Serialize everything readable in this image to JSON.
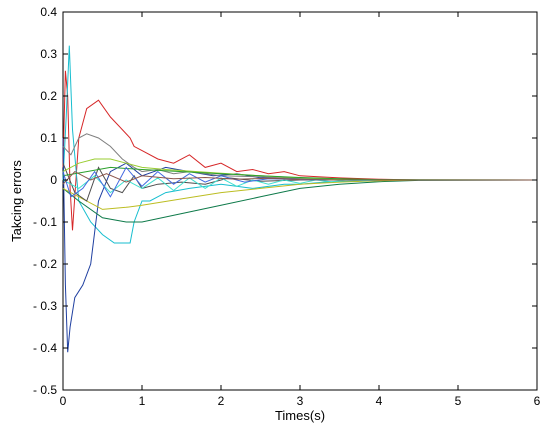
{
  "chart_data": {
    "type": "line",
    "title": "",
    "xlabel": "Times(s)",
    "ylabel": "Takcing errors",
    "xlim": [
      0,
      6
    ],
    "ylim": [
      -0.5,
      0.4
    ],
    "grid": false,
    "legend": "none",
    "xticks": [
      0,
      1,
      2,
      3,
      4,
      5,
      6
    ],
    "xtick_labels": [
      "0",
      "1",
      "2",
      "3",
      "4",
      "5",
      "6"
    ],
    "yticks": [
      0.4,
      0.3,
      0.2,
      0.1,
      0,
      -0.1,
      -0.2,
      -0.3,
      -0.4,
      -0.5
    ],
    "ytick_labels": [
      "0.4",
      "0.3",
      "0.2",
      "0.1",
      "0",
      "- 0.1",
      "- 0.2",
      "- 0.3",
      "- 0.4",
      "- 0.5"
    ],
    "series": [
      {
        "color": "#d62728",
        "x": [
          0,
          0.03,
          0.06,
          0.09,
          0.12,
          0.2,
          0.3,
          0.45,
          0.6,
          0.75,
          0.85,
          0.9,
          1.0,
          1.2,
          1.4,
          1.6,
          1.8,
          2.0,
          2.2,
          2.4,
          2.6,
          2.8,
          3.0,
          3.2,
          3.5,
          4.0,
          4.5,
          6.0
        ],
        "y": [
          0.03,
          0.26,
          0.2,
          -0.02,
          -0.12,
          0.1,
          0.17,
          0.19,
          0.15,
          0.12,
          0.1,
          0.08,
          0.07,
          0.05,
          0.04,
          0.06,
          0.03,
          0.04,
          0.02,
          0.025,
          0.015,
          0.02,
          0.01,
          0.008,
          0.005,
          0.002,
          0.0,
          0.0
        ]
      },
      {
        "color": "#17becf",
        "x": [
          0,
          0.04,
          0.08,
          0.12,
          0.2,
          0.35,
          0.5,
          0.65,
          0.85,
          0.9,
          1.0,
          1.1,
          1.3,
          1.6,
          2.0,
          2.4,
          2.8,
          3.0,
          3.3,
          3.6,
          4.0,
          4.5,
          6.0
        ],
        "y": [
          0.0,
          0.15,
          0.32,
          0.12,
          -0.05,
          -0.1,
          -0.13,
          -0.15,
          -0.15,
          -0.1,
          -0.05,
          -0.05,
          -0.03,
          -0.02,
          -0.01,
          -0.02,
          -0.01,
          -0.01,
          -0.005,
          -0.003,
          -0.001,
          0.0,
          0.0
        ]
      },
      {
        "color": "#1f3fa0",
        "x": [
          0,
          0.03,
          0.06,
          0.09,
          0.15,
          0.25,
          0.35,
          0.45,
          0.6,
          0.8,
          1.0,
          1.3,
          1.6,
          1.9,
          2.2,
          2.5,
          3.0,
          3.5,
          4.0,
          6.0
        ],
        "y": [
          0.1,
          -0.25,
          -0.41,
          -0.35,
          -0.28,
          -0.25,
          -0.2,
          -0.05,
          0.02,
          0.04,
          0.01,
          0.03,
          0.02,
          0.01,
          0.015,
          0.005,
          0.003,
          0.001,
          0.0,
          0.0
        ]
      },
      {
        "color": "#0e7a4a",
        "x": [
          0,
          0.2,
          0.5,
          0.8,
          1.0,
          1.5,
          2.0,
          2.5,
          3.0,
          3.5,
          4.0,
          4.5,
          6.0
        ],
        "y": [
          -0.02,
          -0.05,
          -0.09,
          -0.1,
          -0.1,
          -0.08,
          -0.06,
          -0.04,
          -0.02,
          -0.01,
          -0.004,
          -0.001,
          0.0
        ]
      },
      {
        "color": "#bcbd22",
        "x": [
          0,
          0.2,
          0.5,
          0.8,
          1.0,
          1.5,
          2.0,
          2.5,
          3.0,
          3.5,
          4.0,
          4.5,
          6.0
        ],
        "y": [
          -0.02,
          -0.04,
          -0.07,
          -0.065,
          -0.06,
          -0.045,
          -0.03,
          -0.02,
          -0.01,
          -0.005,
          -0.002,
          0.0,
          0.0
        ]
      },
      {
        "color": "#7f7f7f",
        "x": [
          0,
          0.1,
          0.2,
          0.3,
          0.45,
          0.6,
          0.75,
          0.9,
          1.0,
          1.2,
          1.4,
          1.6,
          2.0,
          2.4,
          2.8,
          3.2,
          3.6,
          4.0,
          6.0
        ],
        "y": [
          0.08,
          0.06,
          0.1,
          0.11,
          0.1,
          0.08,
          0.05,
          0.03,
          0.02,
          0.025,
          0.015,
          0.02,
          0.01,
          0.008,
          0.005,
          0.003,
          0.001,
          0.0,
          0.0
        ]
      },
      {
        "color": "#4d4d4d",
        "x": [
          0,
          0.15,
          0.3,
          0.45,
          0.6,
          0.75,
          0.9,
          1.0,
          1.2,
          1.5,
          1.8,
          2.1,
          2.5,
          3.0,
          3.5,
          4.0,
          6.0
        ],
        "y": [
          0.04,
          -0.03,
          -0.05,
          0.03,
          -0.02,
          -0.03,
          0.01,
          -0.02,
          -0.01,
          -0.005,
          -0.01,
          0.005,
          -0.003,
          0.0,
          0.0,
          0.0,
          0.0
        ]
      },
      {
        "color": "#9acd32",
        "x": [
          0,
          0.2,
          0.4,
          0.6,
          0.8,
          1.0,
          1.3,
          1.7,
          2.1,
          2.5,
          3.0,
          3.5,
          4.0,
          6.0
        ],
        "y": [
          0.02,
          0.04,
          0.05,
          0.05,
          0.04,
          0.03,
          0.025,
          0.02,
          0.015,
          0.01,
          0.005,
          0.002,
          0.0,
          0.0
        ]
      },
      {
        "color": "#2ca02c",
        "x": [
          0,
          0.3,
          0.6,
          1.0,
          1.5,
          2.0,
          2.5,
          3.0,
          3.5,
          4.0,
          6.0
        ],
        "y": [
          0.01,
          0.02,
          0.03,
          0.025,
          0.02,
          0.015,
          0.01,
          0.006,
          0.003,
          0.001,
          0.0
        ]
      },
      {
        "color": "#40e0d0",
        "x": [
          0,
          0.2,
          0.4,
          0.6,
          0.8,
          1.0,
          1.2,
          1.4,
          1.6,
          1.8,
          2.0,
          2.2,
          2.4,
          2.6,
          2.8,
          3.0,
          3.2,
          3.4,
          3.6,
          3.8,
          4.0,
          4.5,
          6.0
        ],
        "y": [
          0.0,
          -0.02,
          0.01,
          -0.03,
          0.0,
          -0.02,
          0.005,
          -0.025,
          0.005,
          -0.02,
          0.005,
          -0.015,
          0.0,
          -0.01,
          0.0,
          -0.008,
          0.0,
          -0.004,
          0.0,
          -0.002,
          0.0,
          0.0,
          0.0
        ]
      },
      {
        "color": "#4169e1",
        "x": [
          0,
          0.1,
          0.25,
          0.4,
          0.6,
          0.8,
          1.0,
          1.2,
          1.4,
          1.6,
          1.8,
          2.0,
          2.3,
          2.6,
          3.0,
          3.5,
          4.0,
          6.0
        ],
        "y": [
          0.02,
          -0.04,
          -0.02,
          0.02,
          -0.04,
          0.03,
          -0.015,
          0.02,
          -0.01,
          0.015,
          -0.005,
          0.01,
          -0.005,
          0.003,
          0.001,
          0.0,
          0.0,
          0.0
        ]
      },
      {
        "color": "#8c564b",
        "x": [
          0,
          0.15,
          0.35,
          0.55,
          0.8,
          1.0,
          1.4,
          1.8,
          2.2,
          2.6,
          3.0,
          3.5,
          4.0,
          6.0
        ],
        "y": [
          -0.01,
          0.02,
          0.0,
          0.015,
          -0.005,
          0.01,
          0.003,
          0.006,
          0.002,
          0.004,
          0.001,
          0.0,
          0.0,
          0.0
        ]
      }
    ]
  }
}
